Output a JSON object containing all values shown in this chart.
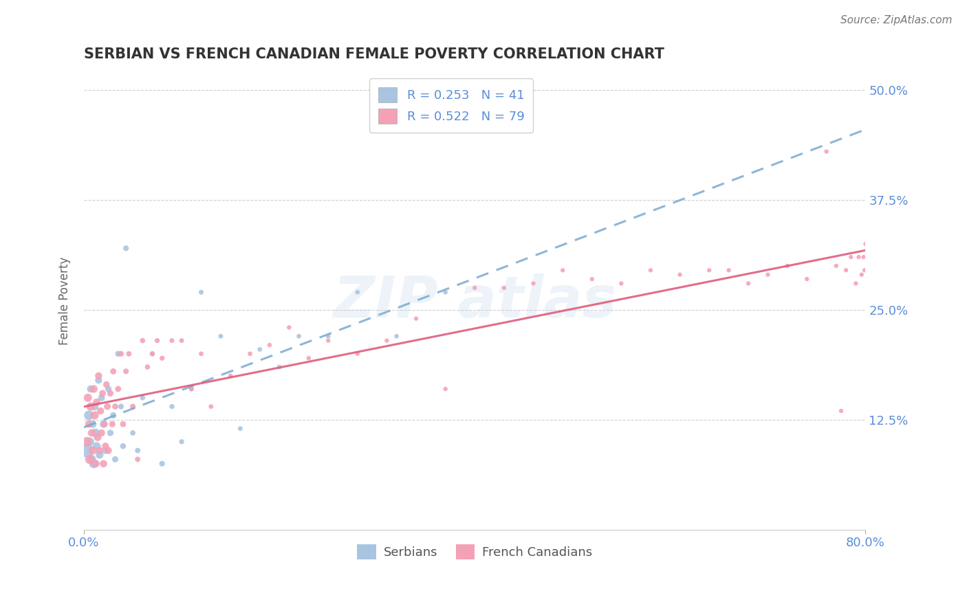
{
  "title": "SERBIAN VS FRENCH CANADIAN FEMALE POVERTY CORRELATION CHART",
  "source": "Source: ZipAtlas.com",
  "ylabel": "Female Poverty",
  "yticks": [
    0.0,
    0.125,
    0.25,
    0.375,
    0.5
  ],
  "ytick_labels": [
    "",
    "12.5%",
    "25.0%",
    "37.5%",
    "50.0%"
  ],
  "xtick_labels": [
    "0.0%",
    "80.0%"
  ],
  "xtick_vals": [
    0.0,
    0.8
  ],
  "xlim": [
    0.0,
    0.8
  ],
  "ylim": [
    0.0,
    0.52
  ],
  "serbian_R": 0.253,
  "serbian_N": 41,
  "french_R": 0.522,
  "french_N": 79,
  "serbian_color": "#a8c4e0",
  "french_color": "#f4a0b5",
  "serbian_line_color": "#7aaad0",
  "french_line_color": "#e05878",
  "legend_label_serbian": "Serbians",
  "legend_label_french": "French Canadians",
  "title_color": "#333333",
  "axis_label_color": "#5b8dd9",
  "source_color": "#777777",
  "grid_color": "#d0d0d0",
  "serbian_x": [
    0.003,
    0.005,
    0.006,
    0.007,
    0.008,
    0.009,
    0.01,
    0.011,
    0.012,
    0.013,
    0.015,
    0.016,
    0.018,
    0.02,
    0.022,
    0.025,
    0.027,
    0.03,
    0.032,
    0.035,
    0.038,
    0.04,
    0.043,
    0.05,
    0.055,
    0.06,
    0.07,
    0.08,
    0.09,
    0.1,
    0.11,
    0.12,
    0.14,
    0.16,
    0.18,
    0.2,
    0.22,
    0.25,
    0.28,
    0.32,
    0.37
  ],
  "serbian_y": [
    0.09,
    0.13,
    0.1,
    0.16,
    0.08,
    0.12,
    0.075,
    0.14,
    0.11,
    0.095,
    0.17,
    0.085,
    0.15,
    0.12,
    0.09,
    0.16,
    0.11,
    0.13,
    0.08,
    0.2,
    0.14,
    0.095,
    0.32,
    0.11,
    0.09,
    0.15,
    0.2,
    0.075,
    0.14,
    0.1,
    0.16,
    0.27,
    0.22,
    0.115,
    0.205,
    0.185,
    0.22,
    0.22,
    0.27,
    0.22,
    0.27
  ],
  "serbian_sizes": [
    200,
    100,
    80,
    60,
    80,
    65,
    90,
    65,
    80,
    70,
    55,
    65,
    50,
    60,
    55,
    45,
    45,
    45,
    42,
    38,
    35,
    38,
    35,
    32,
    32,
    30,
    28,
    35,
    28,
    28,
    26,
    26,
    25,
    25,
    24,
    24,
    24,
    24,
    23,
    23,
    23
  ],
  "french_x": [
    0.003,
    0.004,
    0.005,
    0.006,
    0.007,
    0.008,
    0.009,
    0.01,
    0.011,
    0.012,
    0.013,
    0.014,
    0.015,
    0.016,
    0.017,
    0.018,
    0.019,
    0.02,
    0.021,
    0.022,
    0.023,
    0.024,
    0.025,
    0.027,
    0.029,
    0.03,
    0.032,
    0.035,
    0.038,
    0.04,
    0.043,
    0.046,
    0.05,
    0.055,
    0.06,
    0.065,
    0.07,
    0.075,
    0.08,
    0.09,
    0.1,
    0.11,
    0.12,
    0.13,
    0.15,
    0.17,
    0.19,
    0.21,
    0.23,
    0.25,
    0.28,
    0.31,
    0.34,
    0.37,
    0.4,
    0.43,
    0.46,
    0.49,
    0.52,
    0.55,
    0.58,
    0.61,
    0.64,
    0.66,
    0.68,
    0.7,
    0.72,
    0.74,
    0.76,
    0.77,
    0.775,
    0.78,
    0.785,
    0.79,
    0.793,
    0.796,
    0.798,
    0.799,
    0.8
  ],
  "french_y": [
    0.1,
    0.15,
    0.12,
    0.08,
    0.14,
    0.11,
    0.09,
    0.16,
    0.13,
    0.075,
    0.145,
    0.105,
    0.175,
    0.09,
    0.135,
    0.11,
    0.155,
    0.075,
    0.12,
    0.095,
    0.165,
    0.14,
    0.09,
    0.155,
    0.12,
    0.18,
    0.14,
    0.16,
    0.2,
    0.12,
    0.18,
    0.2,
    0.14,
    0.08,
    0.215,
    0.185,
    0.2,
    0.215,
    0.195,
    0.215,
    0.215,
    0.16,
    0.2,
    0.14,
    0.175,
    0.2,
    0.21,
    0.23,
    0.195,
    0.215,
    0.2,
    0.215,
    0.24,
    0.16,
    0.275,
    0.275,
    0.28,
    0.295,
    0.285,
    0.28,
    0.295,
    0.29,
    0.295,
    0.295,
    0.28,
    0.29,
    0.3,
    0.285,
    0.43,
    0.3,
    0.135,
    0.295,
    0.31,
    0.28,
    0.31,
    0.29,
    0.31,
    0.295,
    0.325
  ],
  "french_sizes": [
    100,
    75,
    60,
    100,
    80,
    65,
    75,
    65,
    75,
    65,
    60,
    65,
    55,
    60,
    55,
    55,
    50,
    60,
    50,
    55,
    48,
    50,
    55,
    45,
    45,
    42,
    40,
    40,
    35,
    40,
    35,
    32,
    35,
    32,
    30,
    30,
    28,
    28,
    28,
    25,
    25,
    25,
    24,
    24,
    23,
    23,
    22,
    22,
    22,
    22,
    21,
    21,
    21,
    21,
    21,
    21,
    21,
    21,
    21,
    21,
    21,
    21,
    21,
    21,
    21,
    21,
    21,
    21,
    21,
    21,
    21,
    21,
    21,
    21,
    21,
    21,
    21,
    21,
    21
  ]
}
